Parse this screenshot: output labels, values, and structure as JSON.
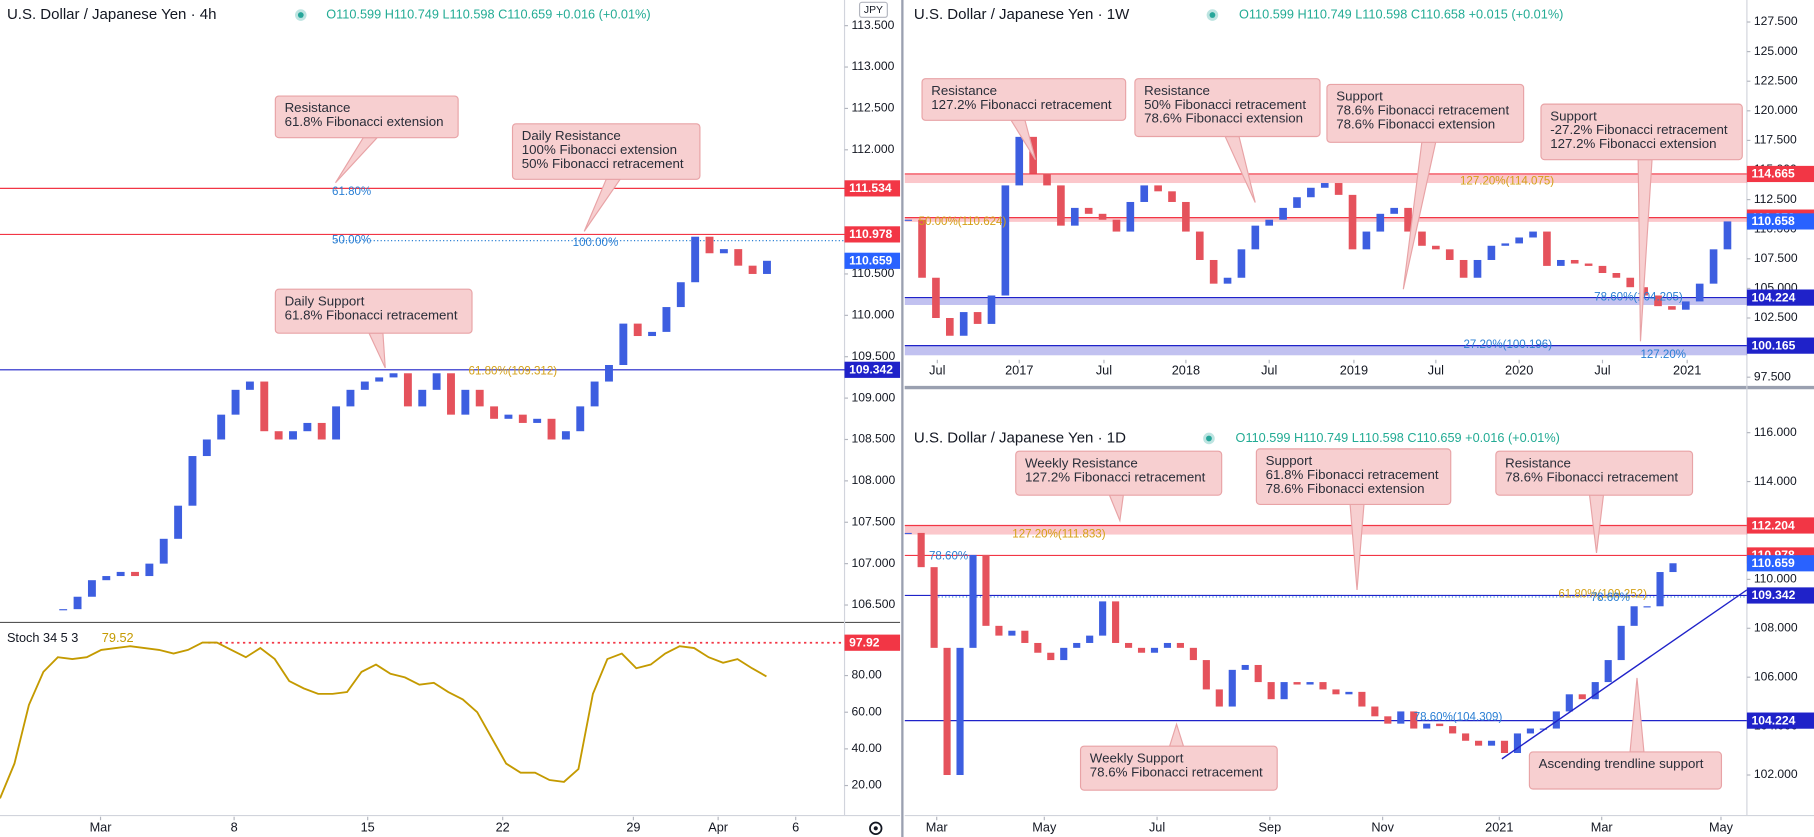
{
  "chart_data": [
    {
      "type": "candlestick",
      "title": "U.S. Dollar / Japanese Yen · 4h",
      "ohlc": "O110.599 H110.749 L110.598 C110.659 +0.016 (+0.01%)",
      "currency": "JPY",
      "up_color": "#3d5ee0",
      "down_color": "#e5525c",
      "closes": [
        106.45,
        106.6,
        106.8,
        106.85,
        106.9,
        106.85,
        107.0,
        107.3,
        107.7,
        108.3,
        108.5,
        108.8,
        109.1,
        109.2,
        108.6,
        108.5,
        108.6,
        108.7,
        108.5,
        108.9,
        109.1,
        109.2,
        109.25,
        109.3,
        108.9,
        109.1,
        109.3,
        108.8,
        109.1,
        108.9,
        108.75,
        108.8,
        108.7,
        108.75,
        108.5,
        108.6,
        108.9,
        109.2,
        109.4,
        109.9,
        109.75,
        109.8,
        110.1,
        110.4,
        110.95,
        110.75,
        110.8,
        110.6,
        110.5,
        110.659
      ],
      "xlim": [
        -4.4,
        54.4
      ],
      "xticks": [
        {
          "value": 2.6,
          "label": "Mar"
        },
        {
          "value": 11.9,
          "label": "8"
        },
        {
          "value": 21.2,
          "label": "15"
        },
        {
          "value": 30.6,
          "label": "22"
        },
        {
          "value": 39.7,
          "label": "29"
        },
        {
          "value": 45.6,
          "label": "Apr"
        },
        {
          "value": 51,
          "label": "6"
        }
      ],
      "ylim": [
        106.29,
        113.81
      ],
      "yticks": [
        {
          "value": 106.5,
          "label": "106.500"
        },
        {
          "value": 107,
          "label": "107.000"
        },
        {
          "value": 107.5,
          "label": "107.500"
        },
        {
          "value": 108,
          "label": "108.000"
        },
        {
          "value": 108.5,
          "label": "108.500"
        },
        {
          "value": 109,
          "label": "109.000"
        },
        {
          "value": 109.5,
          "label": "109.500"
        },
        {
          "value": 110,
          "label": "110.000"
        },
        {
          "value": 110.5,
          "label": "110.500"
        },
        {
          "value": 111,
          "label": "111.000"
        },
        {
          "value": 111.5,
          "label": "111.500"
        },
        {
          "value": 112,
          "label": "112.000"
        },
        {
          "value": 112.5,
          "label": "112.500"
        },
        {
          "value": 113,
          "label": "113.000"
        },
        {
          "value": 113.5,
          "label": "113.500"
        }
      ],
      "levels": [
        {
          "value": 111.534,
          "color": "#f23645"
        },
        {
          "value": 110.978,
          "color": "#f23645"
        },
        {
          "value": 109.342,
          "color": "#1f22c9"
        }
      ],
      "current_color": "#2962ff",
      "fib_labels": [
        "61.80%",
        "50.00%",
        "100.00%",
        "61.80%(109.312)"
      ],
      "annotations": [
        {
          "lines": [
            "Resistance",
            "61.8% Fibonacci extension"
          ]
        },
        {
          "lines": [
            "Daily Resistance",
            "100% Fibonacci extension",
            "50% Fibonacci retracement"
          ]
        },
        {
          "lines": [
            "Daily Support",
            "61.8% Fibonacci retracement"
          ]
        }
      ],
      "stochastic": {
        "title": "Stoch 34 5 3",
        "color": "#c49a00",
        "values": [
          13,
          32,
          64,
          82,
          90,
          89,
          90,
          94,
          95,
          96,
          95,
          94,
          92,
          94,
          98,
          98,
          94,
          90,
          95,
          89,
          77,
          73,
          70,
          70,
          71,
          82,
          86,
          81,
          79,
          75,
          76,
          71,
          67,
          60,
          46,
          32,
          27,
          27,
          23,
          22,
          29,
          70,
          89,
          92,
          84,
          86,
          92,
          96,
          95,
          90,
          87,
          89,
          84,
          79.52
        ],
        "xlim": [
          0,
          58.4
        ],
        "ylim": [
          3.6,
          109
        ],
        "yticks": [
          {
            "value": 20,
            "label": "20.00"
          },
          {
            "value": 40,
            "label": "40.00"
          },
          {
            "value": 60,
            "label": "60.00"
          },
          {
            "value": 80,
            "label": "80.00"
          }
        ],
        "level": 97.92,
        "level_color": "#f23645"
      }
    },
    {
      "type": "candlestick",
      "title": "U.S. Dollar / Japanese Yen · 1W",
      "ohlc": "O110.599 H110.749 L110.598 C110.658 +0.015 (+0.01%)",
      "up_color": "#3d5ee0",
      "down_color": "#e5525c",
      "closes": [
        110.8,
        105.9,
        102.5,
        101,
        103,
        102,
        104.4,
        113.7,
        117.8,
        114.7,
        113.7,
        110.3,
        111.8,
        111.3,
        110.8,
        109.8,
        112.3,
        113.7,
        113.2,
        112.3,
        109.8,
        107.4,
        105.4,
        105.9,
        108.3,
        110.3,
        110.8,
        111.8,
        112.7,
        113.5,
        113.9,
        112.9,
        108.3,
        109.8,
        111.3,
        111.8,
        109.8,
        108.6,
        108.3,
        107.4,
        105.9,
        107.4,
        108.6,
        108.8,
        109.3,
        109.8,
        106.9,
        107.4,
        107.1,
        106.9,
        106.3,
        105.9,
        105.1,
        104.4,
        103.5,
        103.2,
        103.9,
        105.4,
        108.3,
        110.658
      ],
      "xlim": [
        -0.25,
        60.4
      ],
      "xticks": [
        {
          "value": 2.1,
          "label": "Jul"
        },
        {
          "value": 8,
          "label": "2017"
        },
        {
          "value": 14.1,
          "label": "Jul"
        },
        {
          "value": 20,
          "label": "2018"
        },
        {
          "value": 26,
          "label": "Jul"
        },
        {
          "value": 32.1,
          "label": "2019"
        },
        {
          "value": 38,
          "label": "Jul"
        },
        {
          "value": 44,
          "label": "2020"
        },
        {
          "value": 50,
          "label": "Jul"
        },
        {
          "value": 56.1,
          "label": "2021"
        }
      ],
      "ylim": [
        96.82,
        129.36
      ],
      "yticks": [
        {
          "value": 97.5,
          "label": "97.500"
        },
        {
          "value": 100,
          "label": "100.000"
        },
        {
          "value": 102.5,
          "label": "102.500"
        },
        {
          "value": 105,
          "label": "105.000"
        },
        {
          "value": 107.5,
          "label": "107.500"
        },
        {
          "value": 110,
          "label": "110.000"
        },
        {
          "value": 112.5,
          "label": "112.500"
        },
        {
          "value": 115,
          "label": "115.000"
        },
        {
          "value": 117.5,
          "label": "117.500"
        },
        {
          "value": 120,
          "label": "120.000"
        },
        {
          "value": 122.5,
          "label": "122.500"
        },
        {
          "value": 125,
          "label": "125.000"
        },
        {
          "value": 127.5,
          "label": "127.500"
        }
      ],
      "levels": [
        {
          "value": 114.665,
          "band_to": 113.9,
          "color": "#f23645"
        },
        {
          "value": 110.978,
          "band_to": 110.62,
          "color": "#f23645"
        },
        {
          "value": 104.224,
          "band_to": 103.6,
          "color": "#1f22c9"
        },
        {
          "value": 100.165,
          "band_to": 99.35,
          "color": "#1f22c9"
        }
      ],
      "current_color": "#2962ff",
      "fib_labels": [
        "127.20%(114.075)",
        "50.00%(110.624)",
        "78.60%(104.205)",
        "27.20%(100.196)",
        "127.20%"
      ],
      "annotations": [
        {
          "lines": [
            "Resistance",
            "127.2% Fibonacci retracement"
          ]
        },
        {
          "lines": [
            "Resistance",
            "50% Fibonacci retracement",
            "78.6% Fibonacci extension"
          ]
        },
        {
          "lines": [
            "Support",
            "78.6% Fibonacci retracement",
            "78.6% Fibonacci extension"
          ]
        },
        {
          "lines": [
            "Support",
            "-27.2% Fibonacci retracement",
            "127.2% Fibonacci extension"
          ]
        }
      ]
    },
    {
      "type": "candlestick",
      "title": "U.S. Dollar / Japanese Yen · 1D",
      "ohlc": "O110.599 H110.749 L110.598 C110.659 +0.016 (+0.01%)",
      "up_color": "#3d5ee0",
      "down_color": "#e5525c",
      "closes": [
        111.9,
        110.5,
        107.2,
        102,
        107.2,
        111,
        108.1,
        107.7,
        107.9,
        107.4,
        107,
        106.7,
        107.2,
        107.4,
        107.7,
        109.1,
        107.4,
        107.2,
        107,
        107.2,
        107.4,
        107.2,
        106.7,
        105.5,
        104.8,
        106.3,
        106.5,
        105.8,
        105.1,
        105.8,
        105.7,
        105.8,
        105.5,
        105.3,
        105.4,
        104.8,
        104.4,
        104.1,
        104.6,
        103.9,
        104.1,
        104,
        103.7,
        103.4,
        103.2,
        103.4,
        102.9,
        103.7,
        103.9,
        103.9,
        104.6,
        105.3,
        105.1,
        105.8,
        106.7,
        108.1,
        108.9,
        108.9,
        110.3,
        110.659
      ],
      "xlim": [
        -0.27,
        64.7
      ],
      "xticks": [
        {
          "value": 2.2,
          "label": "Mar"
        },
        {
          "value": 10.5,
          "label": "May"
        },
        {
          "value": 19.2,
          "label": "Jul"
        },
        {
          "value": 27.9,
          "label": "Sep"
        },
        {
          "value": 36.6,
          "label": "Nov"
        },
        {
          "value": 45.6,
          "label": "2021"
        },
        {
          "value": 53.5,
          "label": "Mar"
        },
        {
          "value": 62.7,
          "label": "May"
        }
      ],
      "ylim": [
        100.34,
        117.75
      ],
      "yticks": [
        {
          "value": 102,
          "label": "102.000"
        },
        {
          "value": 104,
          "label": "104.000"
        },
        {
          "value": 106,
          "label": "106.000"
        },
        {
          "value": 108,
          "label": "108.000"
        },
        {
          "value": 110,
          "label": "110.000"
        },
        {
          "value": 112,
          "label": "112.000"
        },
        {
          "value": 114,
          "label": "114.000"
        },
        {
          "value": 116,
          "label": "116.000"
        }
      ],
      "levels": [
        {
          "value": 112.204,
          "band_to": 111.833,
          "color": "#f23645"
        },
        {
          "value": 110.978,
          "color": "#f23645"
        },
        {
          "value": 109.342,
          "color": "#1f22c9"
        },
        {
          "value": 104.224,
          "color": "#1f22c9"
        }
      ],
      "current_color": "#2962ff",
      "trendline": {
        "x": [
          45.8,
          64.7
        ],
        "y": [
          102.66,
          109.57
        ],
        "color": "#1f22c9"
      },
      "fib_labels": [
        "127.20%(111.833)",
        "78.60%",
        "61.80%(109.252)",
        "78.60%",
        "78.60%(104.309)"
      ],
      "annotations": [
        {
          "lines": [
            "Weekly Resistance",
            "127.2% Fibonacci retracement"
          ]
        },
        {
          "lines": [
            "Support",
            "61.8% Fibonacci retracement",
            "78.6% Fibonacci extension"
          ]
        },
        {
          "lines": [
            "Resistance",
            "78.6% Fibonacci retracement"
          ]
        },
        {
          "lines": [
            "Weekly Support",
            "78.6% Fibonacci retracement"
          ]
        },
        {
          "lines": [
            "Ascending trendline support"
          ]
        }
      ]
    }
  ]
}
